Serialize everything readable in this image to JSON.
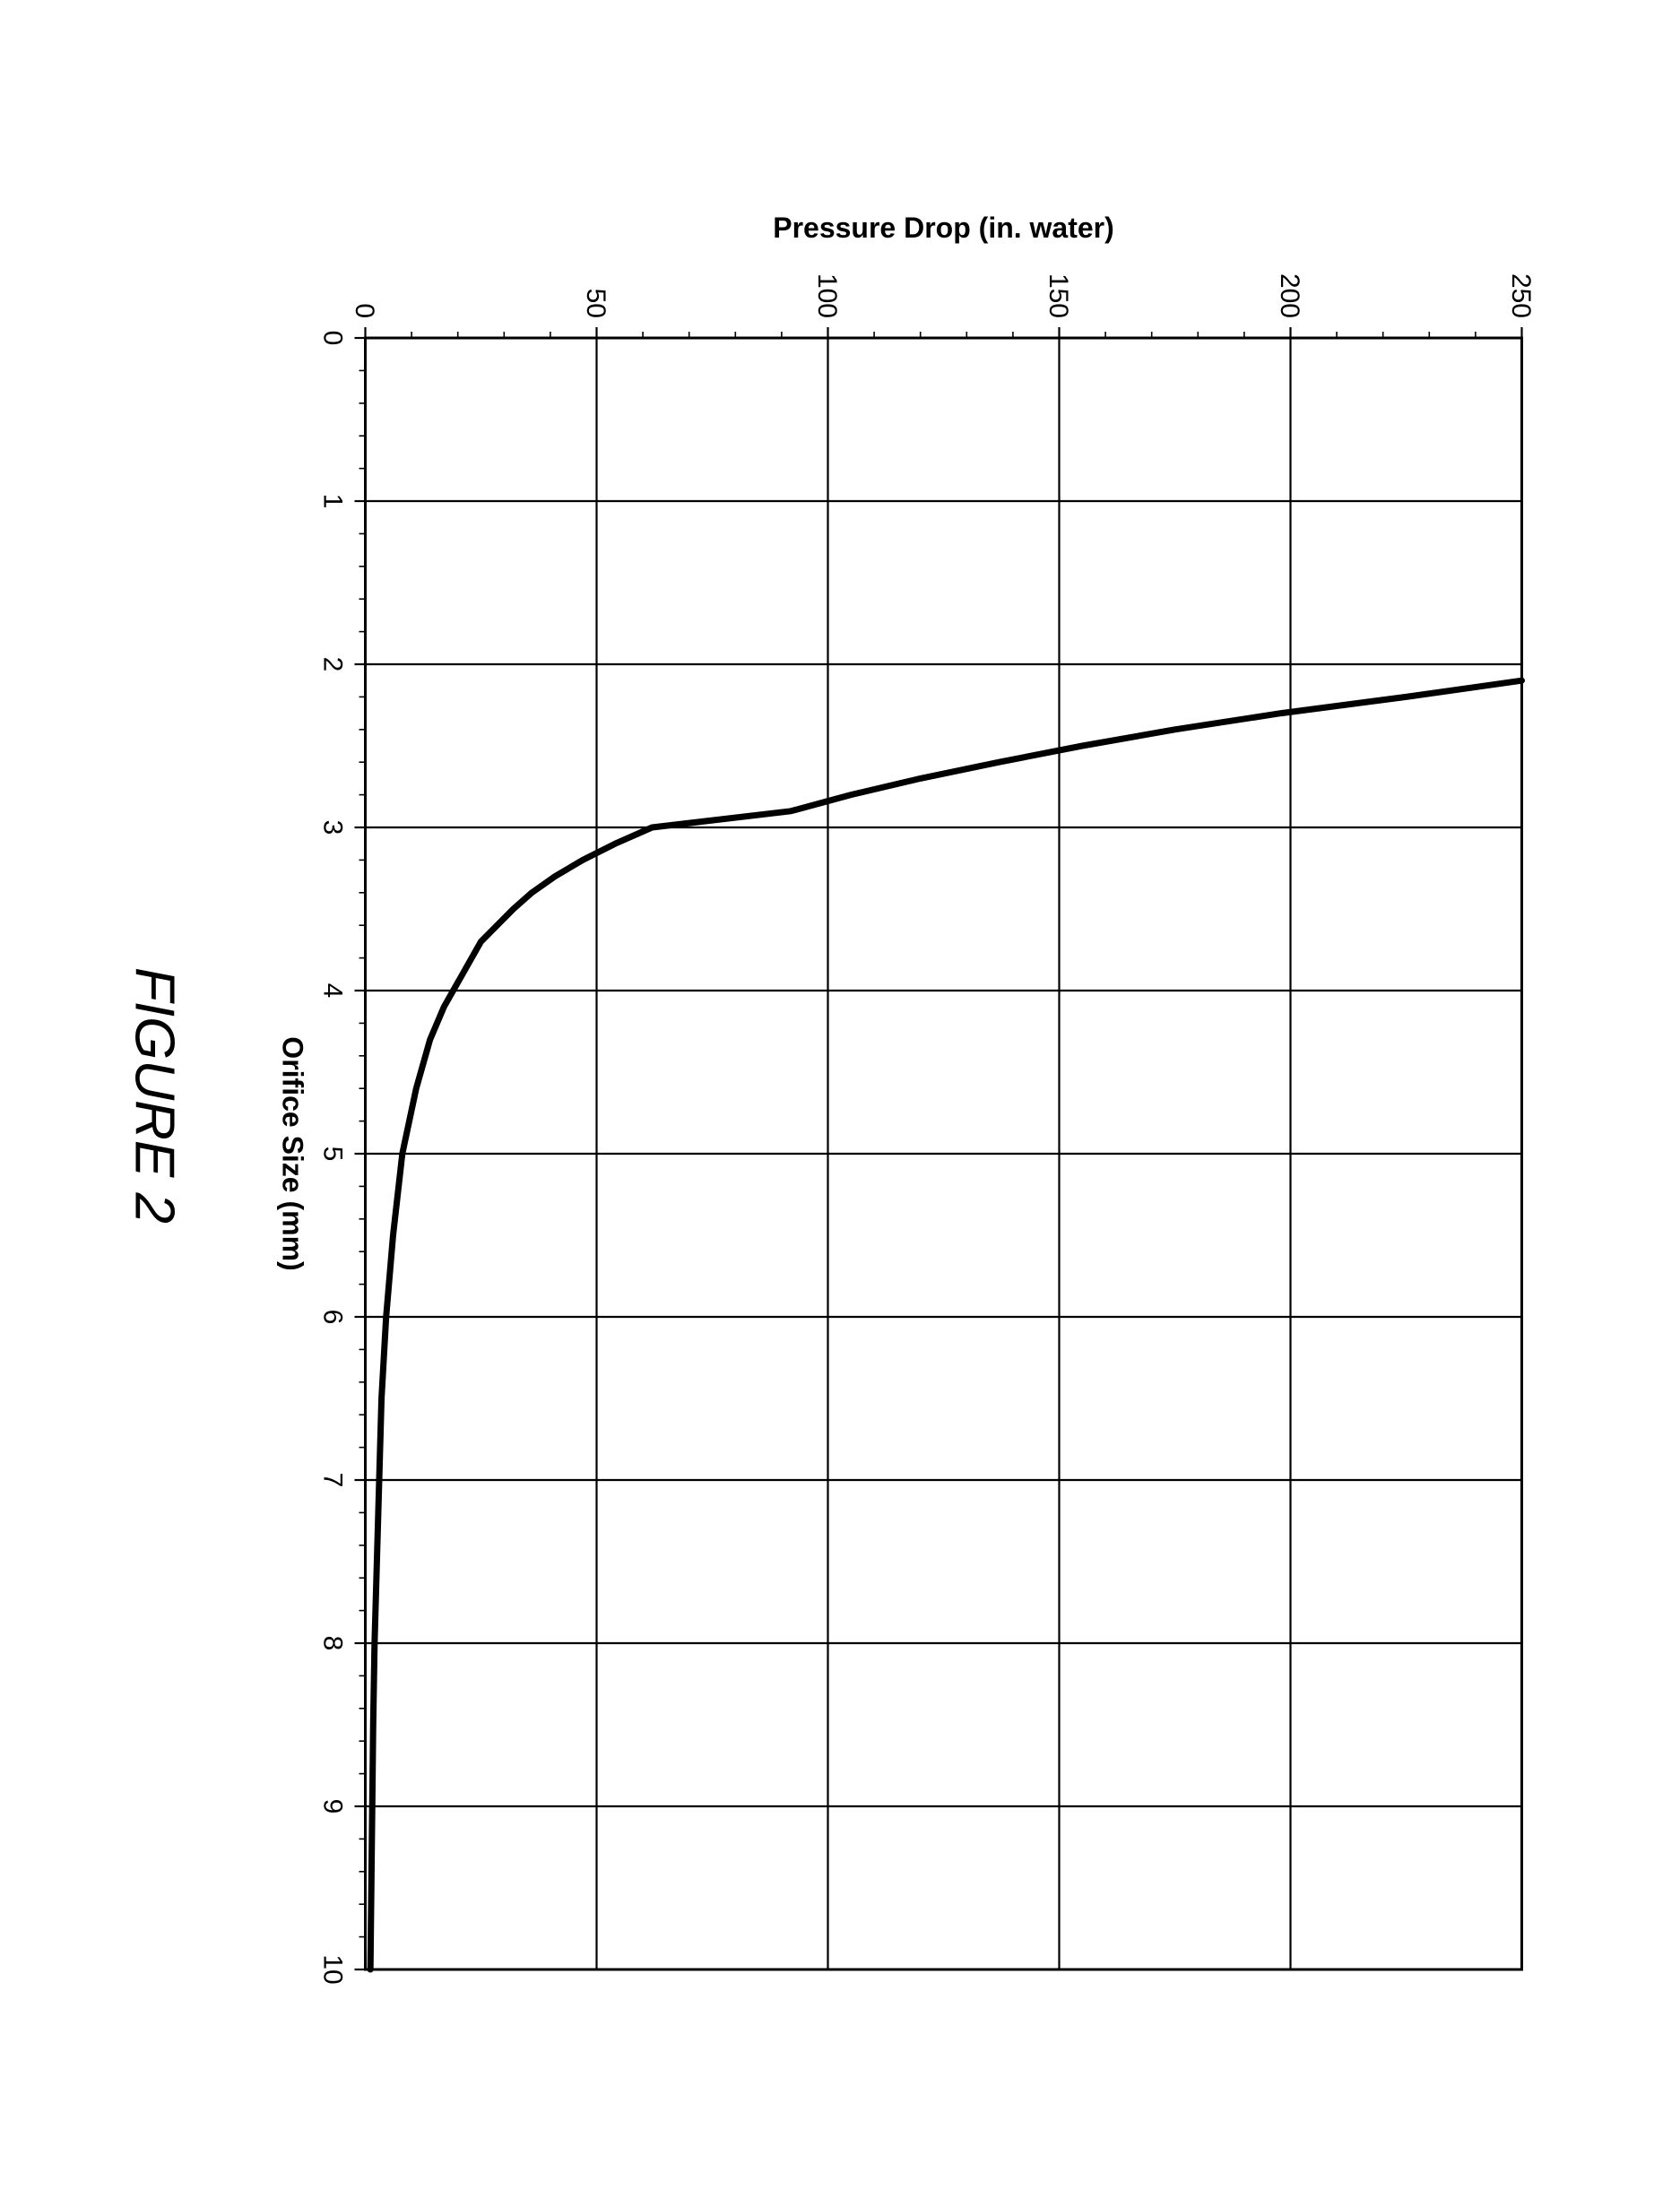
{
  "chart": {
    "type": "line",
    "x_values": [
      2.1,
      2.2,
      2.3,
      2.4,
      2.5,
      2.6,
      2.7,
      2.8,
      2.9,
      3.0,
      3.1,
      3.2,
      3.3,
      3.4,
      3.5,
      3.7,
      3.9,
      4.1,
      4.3,
      4.6,
      5.0,
      5.5,
      6.0,
      6.5,
      7.0,
      7.5,
      8.0,
      8.5,
      9.0,
      9.5,
      10.0
    ],
    "y_values": [
      250,
      225,
      198,
      175,
      155,
      137,
      120,
      105,
      92,
      62,
      54,
      47,
      41,
      36,
      32,
      25,
      21,
      17,
      14,
      11,
      8,
      6,
      4.5,
      3.5,
      3,
      2.5,
      2,
      1.7,
      1.5,
      1.3,
      1.1
    ],
    "xlim": [
      0,
      10
    ],
    "ylim": [
      0,
      250
    ],
    "x_ticks": [
      0,
      1,
      2,
      3,
      4,
      5,
      6,
      7,
      8,
      9,
      10
    ],
    "y_ticks": [
      0,
      50,
      100,
      150,
      200,
      250
    ],
    "x_label": "Orifice Size (mm)",
    "y_label": "Pressure Drop (in. water)",
    "tick_fontsize": 30,
    "axis_label_fontsize": 32,
    "axis_label_weight": "bold",
    "line_color": "#000000",
    "line_width": 7,
    "grid_color": "#000000",
    "grid_width": 2.2,
    "border_color": "#000000",
    "border_width": 3,
    "background_color": "#ffffff",
    "tick_len": 12,
    "minor_tick_len": 7,
    "minor_per_major_x": 5,
    "minor_per_major_y": 5,
    "aspect_w": 2050,
    "aspect_h": 1490,
    "plot_margin": {
      "l": 180,
      "r": 50,
      "t": 40,
      "b": 160
    }
  },
  "caption": "FIGURE 2"
}
